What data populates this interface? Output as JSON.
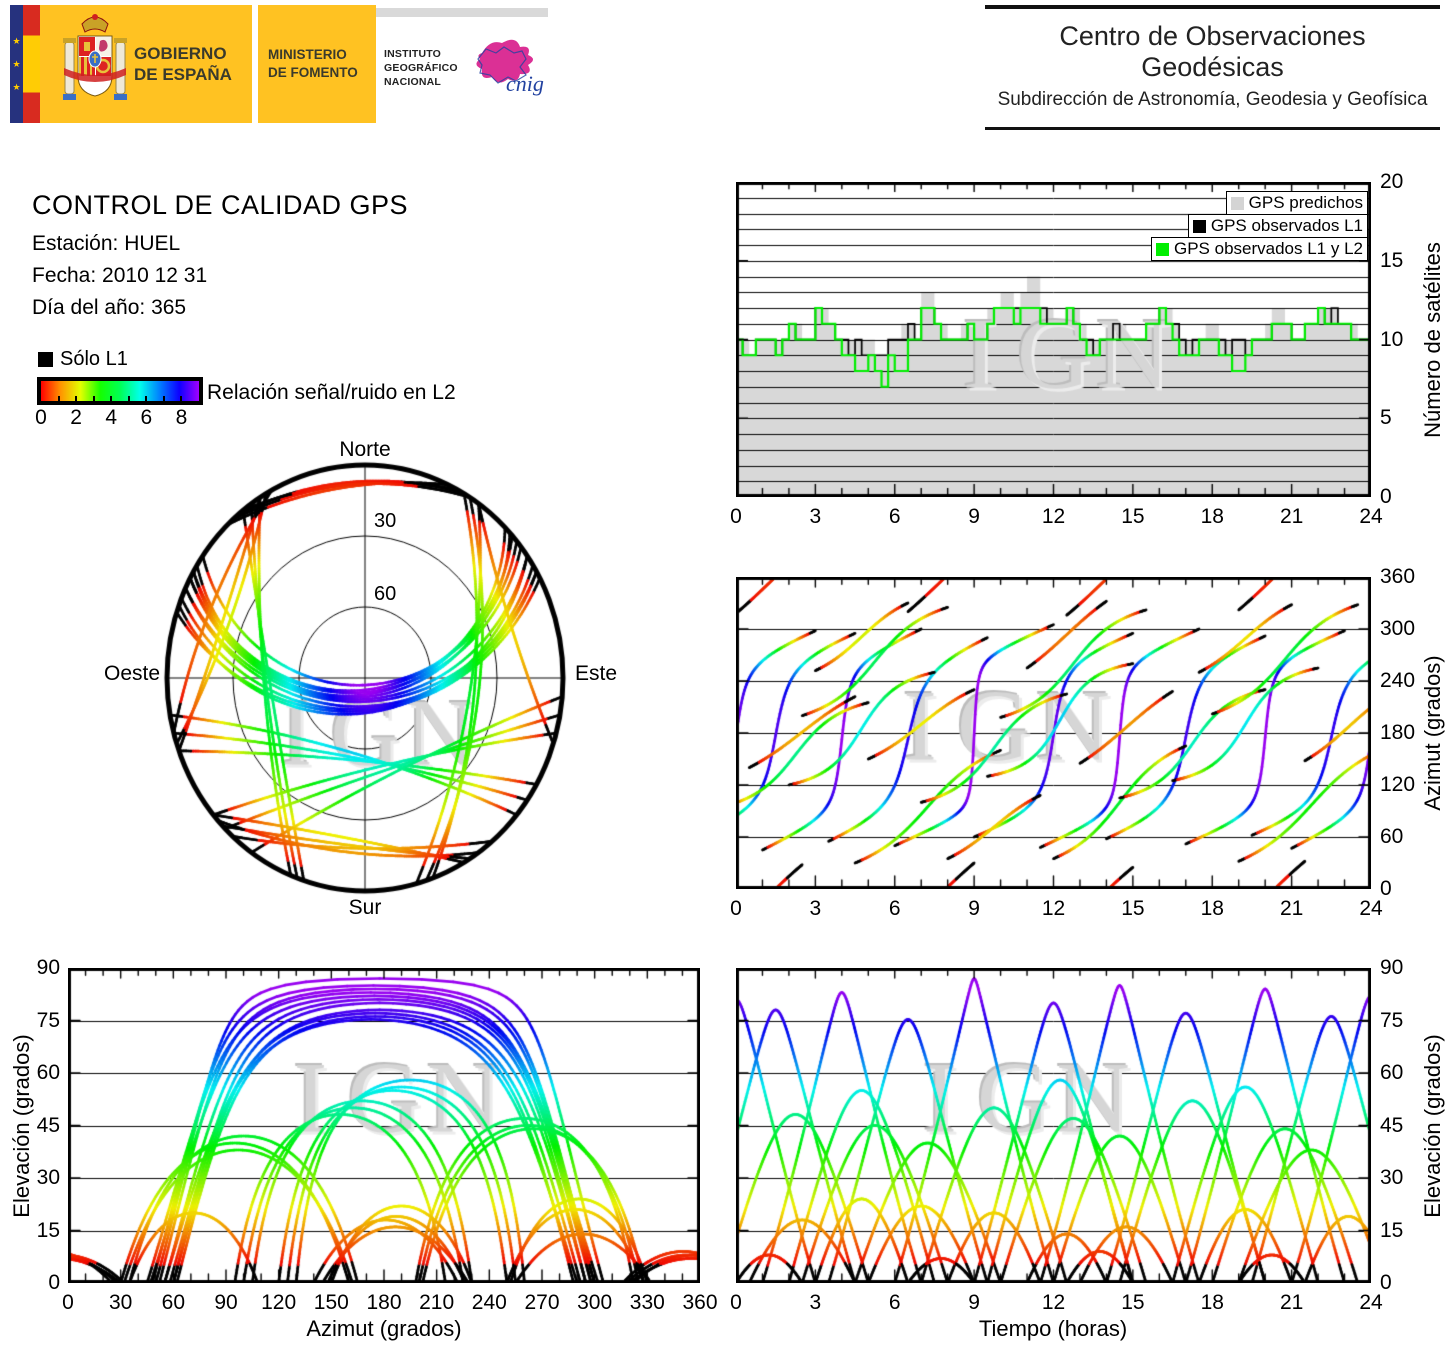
{
  "header_left": {
    "gobierno_lines": [
      "GOBIERNO",
      "DE ESPAÑA"
    ],
    "ministerio_lines": [
      "MINISTERIO",
      "DE FOMENTO"
    ],
    "instituto_lines": [
      "INSTITUTO",
      "GEOGRÁFICO",
      "NACIONAL"
    ],
    "cnig_label": "cnig",
    "colors": {
      "yellow": "#FFC222",
      "eu_blue": "#26327E",
      "flag_red": "#D82B20",
      "flag_yellow": "#FFCC05",
      "cnig_magenta": "#D81E8C",
      "cnig_blue": "#2242A0"
    }
  },
  "header_right": {
    "title": "Centro de Observaciones Geodésicas",
    "subtitle": "Subdirección de Astronomía, Geodesia y Geofísica"
  },
  "info": {
    "title": "CONTROL DE CALIDAD GPS",
    "station": "Estación: HUEL",
    "date": "Fecha: 2010 12 31",
    "day_of_year": "Día del año: 365"
  },
  "snr_legend": {
    "solo_l1_label": "Sólo L1",
    "solo_l1_color": "#000000",
    "colorbar_caption": "Relación señal/ruido en L2",
    "tick_labels": [
      "0",
      "2",
      "4",
      "6",
      "8"
    ],
    "value_range": [
      0,
      9
    ],
    "gradient_stops": [
      "#ff0000",
      "#ff9500",
      "#e3ff00",
      "#15ff00",
      "#00ff55",
      "#00ffea",
      "#0080ff",
      "#0d00ff",
      "#a100ff"
    ]
  },
  "skyplot": {
    "north": "Norte",
    "south": "Sur",
    "east": "Este",
    "west": "Oeste",
    "ring_labels": [
      "30",
      "60"
    ],
    "watermark": "IGN"
  },
  "charts": {
    "nsat": {
      "ylabel": "Número de satélites",
      "yticks": [
        0,
        5,
        10,
        15,
        20
      ],
      "xticks": [
        0,
        3,
        6,
        9,
        12,
        15,
        18,
        21,
        24
      ],
      "watermark": "IGN",
      "legend": [
        {
          "label": "GPS predichos",
          "color": "#d4d4d4"
        },
        {
          "label": "GPS observados L1",
          "color": "#000000"
        },
        {
          "label": "GPS observados L1 y L2",
          "color": "#00ee00"
        }
      ]
    },
    "azimut_tiempo": {
      "ylabel": "Azimut (grados)",
      "yticks": [
        0,
        60,
        120,
        180,
        240,
        300,
        360
      ],
      "xticks": [
        0,
        3,
        6,
        9,
        12,
        15,
        18,
        21,
        24
      ],
      "watermark": "IGN"
    },
    "elev_azimut": {
      "ylabel": "Elevación (grados)",
      "xlabel": "Azimut (grados)",
      "yticks": [
        0,
        15,
        30,
        45,
        60,
        75,
        90
      ],
      "xticks": [
        0,
        30,
        60,
        90,
        120,
        150,
        180,
        210,
        240,
        270,
        300,
        330,
        360
      ],
      "watermark": "IGN"
    },
    "elev_tiempo": {
      "ylabel": "Elevación (grados)",
      "xlabel": "Tiempo (horas)",
      "yticks": [
        0,
        15,
        30,
        45,
        60,
        75,
        90
      ],
      "xticks": [
        0,
        3,
        6,
        9,
        12,
        15,
        18,
        21,
        24
      ],
      "watermark": "IGN"
    }
  },
  "chart_data": [
    {
      "id": "satellites_count",
      "type": "area-step",
      "title": "",
      "xlabel": "",
      "ylabel": "Número de satélites",
      "xlim": [
        0,
        24
      ],
      "ylim": [
        0,
        20
      ],
      "grid": "horizontal-every-1",
      "x_step_hours": 0.25,
      "series": [
        {
          "name": "GPS predichos",
          "color": "#d4d4d4",
          "style": "filled-steps",
          "values": [
            10,
            10,
            9,
            10,
            10,
            10,
            10,
            10,
            11,
            11,
            10,
            10,
            12,
            12,
            11,
            10,
            10,
            10,
            10,
            10,
            10,
            9,
            9,
            10,
            10,
            11,
            11,
            10,
            13,
            13,
            11,
            11,
            10,
            10,
            11,
            11,
            10,
            10,
            12,
            12,
            13,
            13,
            12,
            13,
            14,
            14,
            12,
            12,
            11,
            11,
            12,
            12,
            11,
            10,
            10,
            10,
            10,
            11,
            11,
            10,
            10,
            10,
            11,
            11,
            12,
            12,
            11,
            10,
            10,
            10,
            10,
            11,
            11,
            10,
            10,
            10,
            10,
            10,
            10,
            10,
            11,
            12,
            12,
            11,
            10,
            10,
            11,
            11,
            12,
            12,
            12,
            11,
            11,
            11,
            10,
            10
          ]
        },
        {
          "name": "GPS observados L1",
          "color": "#000000",
          "style": "step-line",
          "values": [
            10,
            9,
            9,
            10,
            10,
            10,
            9,
            10,
            11,
            10,
            10,
            10,
            12,
            11,
            11,
            10,
            10,
            9,
            10,
            9,
            9,
            9,
            9,
            10,
            10,
            10,
            11,
            10,
            12,
            12,
            11,
            10,
            10,
            10,
            10,
            11,
            10,
            10,
            11,
            12,
            12,
            12,
            12,
            12,
            12,
            12,
            12,
            11,
            11,
            11,
            12,
            11,
            10,
            10,
            9,
            10,
            10,
            11,
            10,
            10,
            10,
            10,
            11,
            11,
            12,
            11,
            11,
            10,
            9,
            10,
            10,
            10,
            10,
            10,
            9,
            10,
            10,
            9,
            10,
            10,
            10,
            11,
            11,
            11,
            10,
            10,
            11,
            11,
            12,
            11,
            12,
            11,
            11,
            10,
            10,
            10
          ]
        },
        {
          "name": "GPS observados L1 y L2",
          "color": "#00ee00",
          "style": "step-line",
          "values": [
            10,
            9,
            9,
            10,
            10,
            10,
            9,
            10,
            11,
            10,
            10,
            10,
            12,
            11,
            11,
            10,
            9,
            9,
            8,
            8,
            9,
            8,
            7,
            9,
            8,
            8,
            10,
            10,
            12,
            12,
            11,
            10,
            10,
            10,
            10,
            11,
            10,
            10,
            11,
            12,
            12,
            12,
            11,
            12,
            12,
            12,
            11,
            11,
            11,
            11,
            12,
            11,
            10,
            9,
            9,
            10,
            10,
            10,
            10,
            10,
            10,
            10,
            11,
            11,
            12,
            11,
            10,
            9,
            9,
            9,
            10,
            10,
            10,
            9,
            9,
            8,
            8,
            9,
            10,
            10,
            10,
            11,
            11,
            11,
            10,
            10,
            11,
            11,
            12,
            11,
            11,
            11,
            11,
            10,
            10,
            10
          ]
        }
      ]
    },
    {
      "id": "satellite_passes",
      "type": "line",
      "note": "Each pass: [t_rise_h, t_set_h, azimuth_rise_deg, azimuth_apex_deg, azimuth_set_deg, elevation_max_deg]. Colors along track map elevation to the L2 signal/noise rainbow; elevation < 5.5 deg drawn black (Sólo L1).",
      "black_below_elevation_deg": 5.5,
      "passes": [
        [
          -1.5,
          4.5,
          60,
          175,
          295,
          78
        ],
        [
          1,
          7,
          45,
          170,
          300,
          83
        ],
        [
          3.5,
          9.5,
          55,
          185,
          290,
          75
        ],
        [
          6,
          12,
          50,
          178,
          305,
          87
        ],
        [
          9,
          15,
          60,
          180,
          295,
          80
        ],
        [
          11.5,
          17.5,
          48,
          172,
          300,
          85
        ],
        [
          14,
          20,
          58,
          182,
          292,
          77
        ],
        [
          17,
          23,
          52,
          176,
          298,
          84
        ],
        [
          19.5,
          25.5,
          62,
          184,
          288,
          76
        ],
        [
          21,
          27,
          47,
          170,
          302,
          82
        ],
        [
          -3,
          3,
          55,
          180,
          298,
          81
        ],
        [
          -0.5,
          5,
          95,
          150,
          215,
          48
        ],
        [
          2,
          7.5,
          120,
          185,
          250,
          55
        ],
        [
          4.5,
          10,
          30,
          95,
          160,
          40
        ],
        [
          7,
          12.5,
          100,
          160,
          225,
          50
        ],
        [
          9.5,
          15,
          130,
          195,
          260,
          58
        ],
        [
          12,
          17,
          35,
          100,
          165,
          42
        ],
        [
          14.5,
          20,
          105,
          165,
          230,
          52
        ],
        [
          16.5,
          22,
          125,
          190,
          255,
          56
        ],
        [
          19,
          24.5,
          32,
          98,
          162,
          38
        ],
        [
          2.5,
          8,
          200,
          260,
          325,
          45
        ],
        [
          10,
          15.5,
          198,
          258,
          322,
          47
        ],
        [
          18,
          23.5,
          202,
          262,
          328,
          44
        ],
        [
          0.5,
          4.5,
          140,
          180,
          222,
          18
        ],
        [
          5,
          9,
          150,
          190,
          230,
          22
        ],
        [
          8,
          11.5,
          35,
          70,
          108,
          20
        ],
        [
          13,
          16.5,
          145,
          185,
          228,
          16
        ],
        [
          17.5,
          21,
          250,
          290,
          328,
          21
        ],
        [
          3,
          6.5,
          252,
          292,
          330,
          24
        ],
        [
          21.5,
          24.8,
          148,
          188,
          226,
          19
        ],
        [
          11,
          14,
          255,
          293,
          332,
          14
        ],
        [
          0,
          2.5,
          318,
          352,
          28,
          8
        ],
        [
          6.5,
          9,
          320,
          355,
          30,
          7
        ],
        [
          12.5,
          15,
          316,
          350,
          25,
          9
        ],
        [
          19,
          21.5,
          322,
          356,
          32,
          8
        ]
      ]
    },
    {
      "id": "skyplot",
      "type": "line",
      "projection": "polar-sky",
      "rings_deg": [
        0,
        30,
        60
      ],
      "passes_ref": "satellite_passes"
    },
    {
      "id": "azimut_vs_tiempo",
      "type": "line",
      "xlim": [
        0,
        24
      ],
      "ylim": [
        0,
        360
      ],
      "grid": "horizontal-every-60",
      "passes_ref": "satellite_passes"
    },
    {
      "id": "elevacion_vs_azimut",
      "type": "line",
      "xlim": [
        0,
        360
      ],
      "ylim": [
        0,
        90
      ],
      "grid": "horizontal-every-15",
      "passes_ref": "satellite_passes"
    },
    {
      "id": "elevacion_vs_tiempo",
      "type": "line",
      "xlim": [
        0,
        24
      ],
      "ylim": [
        0,
        90
      ],
      "grid": "horizontal-every-15",
      "passes_ref": "satellite_passes"
    }
  ]
}
